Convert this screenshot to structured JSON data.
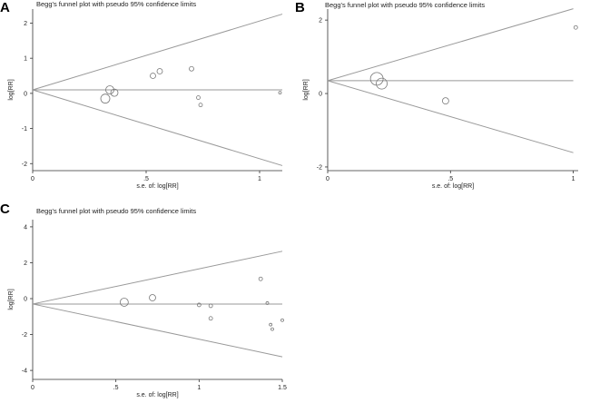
{
  "chart_data": [
    {
      "panel": "A",
      "type": "scatter",
      "title": "Begg's funnel plot with pseudo 95% confidence limits",
      "xlabel": "s.e. of: log[RR]",
      "ylabel": "log[RR]",
      "xlim": [
        0,
        1.1
      ],
      "ylim": [
        -2.2,
        2.4
      ],
      "xticks": [
        0,
        0.5,
        1
      ],
      "xtick_labels": [
        "0",
        ".5",
        "1"
      ],
      "yticks": [
        -2,
        -1,
        0,
        1,
        2
      ],
      "ytick_labels": [
        "-2",
        "-1",
        "0",
        "1",
        "2"
      ],
      "pooled_estimate": 0.1,
      "pseudo_ci_max_se": 1.1,
      "points": [
        {
          "se": 0.32,
          "logrr": -0.15,
          "size": 5
        },
        {
          "se": 0.34,
          "logrr": 0.1,
          "size": 4.5
        },
        {
          "se": 0.36,
          "logrr": 0.02,
          "size": 4
        },
        {
          "se": 0.53,
          "logrr": 0.5,
          "size": 3
        },
        {
          "se": 0.56,
          "logrr": 0.63,
          "size": 3
        },
        {
          "se": 0.7,
          "logrr": 0.7,
          "size": 2.5
        },
        {
          "se": 0.73,
          "logrr": -0.12,
          "size": 2
        },
        {
          "se": 0.74,
          "logrr": -0.33,
          "size": 2
        },
        {
          "se": 1.09,
          "logrr": 0.02,
          "size": 1.5
        }
      ]
    },
    {
      "panel": "B",
      "type": "scatter",
      "title": "Begg's funnel plot with pseudo 95% confidence limits",
      "xlabel": "s.e. of: log[RR]",
      "ylabel": "log[RR]",
      "xlim": [
        0,
        1.02
      ],
      "ylim": [
        -2.1,
        2.3
      ],
      "xticks": [
        0,
        0.5,
        1
      ],
      "xtick_labels": [
        "0",
        ".5",
        "1"
      ],
      "yticks": [
        -2,
        0,
        2
      ],
      "ytick_labels": [
        "-2",
        "0",
        "2"
      ],
      "pooled_estimate": 0.35,
      "pseudo_ci_max_se": 1.0,
      "points": [
        {
          "se": 0.2,
          "logrr": 0.4,
          "size": 7
        },
        {
          "se": 0.22,
          "logrr": 0.27,
          "size": 6
        },
        {
          "se": 0.48,
          "logrr": -0.2,
          "size": 3.5
        },
        {
          "se": 1.01,
          "logrr": 1.8,
          "size": 2
        }
      ]
    },
    {
      "panel": "C",
      "type": "scatter",
      "title": "Begg's funnel plot with pseudo 95% confidence limits",
      "xlabel": "s.e. of: log[RR]",
      "ylabel": "log[RR]",
      "xlim": [
        0,
        1.5
      ],
      "ylim": [
        -4.5,
        4.4
      ],
      "xticks": [
        0,
        0.5,
        1,
        1.5
      ],
      "xtick_labels": [
        "0",
        ".5",
        "1",
        "1.5"
      ],
      "yticks": [
        -4,
        -2,
        0,
        2,
        4
      ],
      "ytick_labels": [
        "-4",
        "-2",
        "0",
        "2",
        "4"
      ],
      "pooled_estimate": -0.3,
      "pseudo_ci_max_se": 1.5,
      "points": [
        {
          "se": 0.55,
          "logrr": -0.2,
          "size": 4.5
        },
        {
          "se": 0.72,
          "logrr": 0.05,
          "size": 3.5
        },
        {
          "se": 1.0,
          "logrr": -0.35,
          "size": 2
        },
        {
          "se": 1.07,
          "logrr": -0.4,
          "size": 2
        },
        {
          "se": 1.07,
          "logrr": -1.1,
          "size": 2
        },
        {
          "se": 1.37,
          "logrr": 1.1,
          "size": 2
        },
        {
          "se": 1.41,
          "logrr": -0.25,
          "size": 1.5
        },
        {
          "se": 1.43,
          "logrr": -1.45,
          "size": 1.5
        },
        {
          "se": 1.44,
          "logrr": -1.7,
          "size": 1.5
        },
        {
          "se": 1.5,
          "logrr": -1.2,
          "size": 1.5
        }
      ]
    }
  ]
}
